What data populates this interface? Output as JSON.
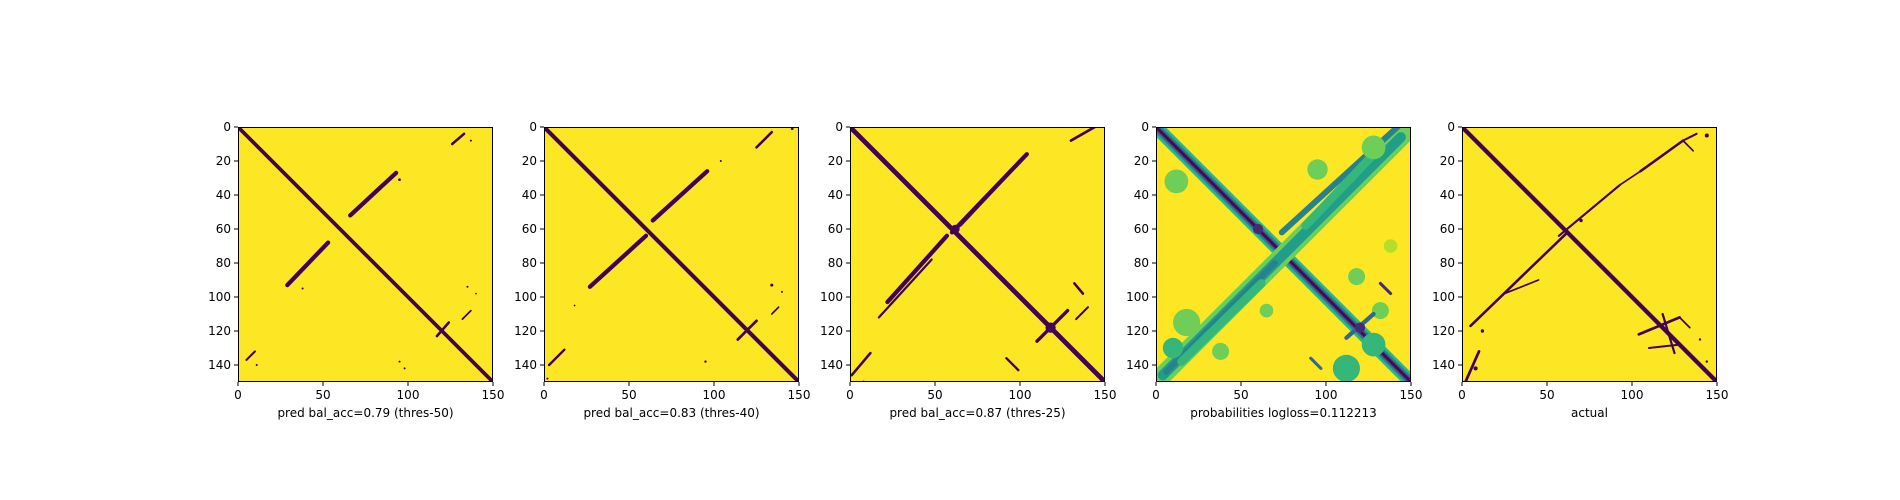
{
  "chart_data": [
    {
      "type": "heatmap",
      "xlabel": "pred bal_acc=0.79 (thres-50)",
      "x_ticks": [
        0,
        50,
        100,
        150
      ],
      "y_ticks": [
        0,
        20,
        40,
        60,
        80,
        100,
        120,
        140
      ],
      "xlim": [
        0,
        150
      ],
      "ylim": [
        150,
        0
      ],
      "colormap": "viridis",
      "colors": {
        "background": "#fde725",
        "contact": "#440154"
      },
      "features": [
        {
          "kind": "band",
          "from": [
            0,
            0
          ],
          "to": [
            150,
            150
          ],
          "width": 2.2,
          "value": 0
        },
        {
          "kind": "band",
          "from": [
            66,
            52
          ],
          "to": [
            93,
            27
          ],
          "width": 2.5,
          "value": 0
        },
        {
          "kind": "band",
          "from": [
            29,
            93
          ],
          "to": [
            53,
            68
          ],
          "width": 2.5,
          "value": 0
        },
        {
          "kind": "band",
          "from": [
            126,
            10
          ],
          "to": [
            133,
            4
          ],
          "width": 1.5,
          "value": 0
        },
        {
          "kind": "band",
          "from": [
            117,
            123
          ],
          "to": [
            124,
            115
          ],
          "width": 1.5,
          "value": 0
        },
        {
          "kind": "band",
          "from": [
            5,
            137
          ],
          "to": [
            10,
            132
          ],
          "width": 1.2,
          "value": 0
        },
        {
          "kind": "band",
          "from": [
            132,
            113
          ],
          "to": [
            137,
            108
          ],
          "width": 1.0,
          "value": 0
        },
        {
          "kind": "dot",
          "at": [
            95,
            31
          ],
          "r": 0.8,
          "value": 0
        },
        {
          "kind": "dot",
          "at": [
            137,
            8
          ],
          "r": 0.6,
          "value": 0
        },
        {
          "kind": "dot",
          "at": [
            135,
            94
          ],
          "r": 0.6,
          "value": 0
        },
        {
          "kind": "dot",
          "at": [
            140,
            98
          ],
          "r": 0.5,
          "value": 0
        },
        {
          "kind": "dot",
          "at": [
            95,
            138
          ],
          "r": 0.6,
          "value": 0
        },
        {
          "kind": "dot",
          "at": [
            98,
            142
          ],
          "r": 0.6,
          "value": 0
        },
        {
          "kind": "dot",
          "at": [
            11,
            140
          ],
          "r": 0.6,
          "value": 0
        },
        {
          "kind": "dot",
          "at": [
            38,
            95
          ],
          "r": 0.6,
          "value": 0
        }
      ]
    },
    {
      "type": "heatmap",
      "xlabel": "pred bal_acc=0.83 (thres-40)",
      "x_ticks": [
        0,
        50,
        100,
        150
      ],
      "y_ticks": [
        0,
        20,
        40,
        60,
        80,
        100,
        120,
        140
      ],
      "xlim": [
        0,
        150
      ],
      "ylim": [
        150,
        0
      ],
      "colormap": "viridis",
      "colors": {
        "background": "#fde725",
        "contact": "#440154"
      },
      "features": [
        {
          "kind": "band",
          "from": [
            0,
            0
          ],
          "to": [
            150,
            150
          ],
          "width": 2.4,
          "value": 0
        },
        {
          "kind": "band",
          "from": [
            64,
            55
          ],
          "to": [
            96,
            26
          ],
          "width": 2.5,
          "value": 0
        },
        {
          "kind": "band",
          "from": [
            27,
            94
          ],
          "to": [
            60,
            64
          ],
          "width": 2.5,
          "value": 0
        },
        {
          "kind": "band",
          "from": [
            125,
            12
          ],
          "to": [
            134,
            3
          ],
          "width": 1.5,
          "value": 0
        },
        {
          "kind": "band",
          "from": [
            114,
            125
          ],
          "to": [
            125,
            114
          ],
          "width": 1.6,
          "value": 0
        },
        {
          "kind": "band",
          "from": [
            3,
            140
          ],
          "to": [
            12,
            131
          ],
          "width": 1.4,
          "value": 0
        },
        {
          "kind": "band",
          "from": [
            134,
            110
          ],
          "to": [
            138,
            106
          ],
          "width": 1.0,
          "value": 0
        },
        {
          "kind": "dot",
          "at": [
            146,
            1
          ],
          "r": 0.8,
          "value": 0
        },
        {
          "kind": "dot",
          "at": [
            104,
            20
          ],
          "r": 0.6,
          "value": 0
        },
        {
          "kind": "dot",
          "at": [
            134,
            93
          ],
          "r": 0.9,
          "value": 0
        },
        {
          "kind": "dot",
          "at": [
            140,
            97
          ],
          "r": 0.6,
          "value": 0
        },
        {
          "kind": "dot",
          "at": [
            95,
            138
          ],
          "r": 0.7,
          "value": 0
        },
        {
          "kind": "dot",
          "at": [
            2,
            148
          ],
          "r": 0.6,
          "value": 0
        },
        {
          "kind": "dot",
          "at": [
            18,
            105
          ],
          "r": 0.5,
          "value": 0
        }
      ]
    },
    {
      "type": "heatmap",
      "xlabel": "pred bal_acc=0.87 (thres-25)",
      "x_ticks": [
        0,
        50,
        100,
        150
      ],
      "y_ticks": [
        0,
        20,
        40,
        60,
        80,
        100,
        120,
        140
      ],
      "xlim": [
        0,
        150
      ],
      "ylim": [
        150,
        0
      ],
      "colormap": "viridis",
      "colors": {
        "background": "#fde725",
        "contact": "#440154"
      },
      "features": [
        {
          "kind": "band",
          "from": [
            0,
            0
          ],
          "to": [
            150,
            150
          ],
          "width": 2.8,
          "value": 0
        },
        {
          "kind": "band",
          "from": [
            60,
            62
          ],
          "to": [
            104,
            16
          ],
          "width": 2.5,
          "value": 0
        },
        {
          "kind": "band",
          "from": [
            65,
            58
          ],
          "to": [
            95,
            26
          ],
          "width": 1.4,
          "value": 0
        },
        {
          "kind": "band",
          "from": [
            22,
            103
          ],
          "to": [
            57,
            64
          ],
          "width": 2.5,
          "value": 0
        },
        {
          "kind": "band",
          "from": [
            17,
            112
          ],
          "to": [
            48,
            78
          ],
          "width": 1.3,
          "value": 0
        },
        {
          "kind": "band",
          "from": [
            130,
            8
          ],
          "to": [
            144,
            0
          ],
          "width": 1.6,
          "value": 0
        },
        {
          "kind": "band",
          "from": [
            110,
            126
          ],
          "to": [
            128,
            108
          ],
          "width": 2.0,
          "value": 0
        },
        {
          "kind": "band",
          "from": [
            1,
            146
          ],
          "to": [
            12,
            133
          ],
          "width": 1.5,
          "value": 0
        },
        {
          "kind": "band",
          "from": [
            133,
            113
          ],
          "to": [
            140,
            106
          ],
          "width": 1.2,
          "value": 0
        },
        {
          "kind": "band",
          "from": [
            132,
            92
          ],
          "to": [
            137,
            98
          ],
          "width": 1.5,
          "value": 0
        },
        {
          "kind": "band",
          "from": [
            92,
            136
          ],
          "to": [
            99,
            143
          ],
          "width": 1.4,
          "value": 0
        },
        {
          "kind": "dot",
          "at": [
            62,
            60
          ],
          "r": 2.5,
          "value": 0
        },
        {
          "kind": "dot",
          "at": [
            118,
            118
          ],
          "r": 3.0,
          "value": 0
        },
        {
          "kind": "dot",
          "at": [
            8,
            150
          ],
          "r": 0.8,
          "value": 0
        }
      ]
    },
    {
      "type": "heatmap",
      "xlabel": "probabilities logloss=0.112213",
      "x_ticks": [
        0,
        50,
        100,
        150
      ],
      "y_ticks": [
        0,
        20,
        40,
        60,
        80,
        100,
        120,
        140
      ],
      "xlim": [
        0,
        150
      ],
      "ylim": [
        150,
        0
      ],
      "colormap": "viridis",
      "colors": {
        "background": "#fde725",
        "low": "#b5de2b",
        "mid": "#35b779",
        "high": "#21918c",
        "peak": "#31688e",
        "max": "#440154"
      },
      "features": [
        {
          "kind": "band",
          "from": [
            0,
            0
          ],
          "to": [
            150,
            150
          ],
          "width": 8,
          "value": 0.25
        },
        {
          "kind": "band",
          "from": [
            0,
            0
          ],
          "to": [
            150,
            150
          ],
          "width": 5,
          "value": 0.5
        },
        {
          "kind": "band",
          "from": [
            0,
            0
          ],
          "to": [
            150,
            150
          ],
          "width": 2.5,
          "value": 0.9
        },
        {
          "kind": "band",
          "from": [
            0,
            0
          ],
          "to": [
            150,
            150
          ],
          "width": 1.0,
          "value": 1.0
        },
        {
          "kind": "band",
          "from": [
            0,
            150
          ],
          "to": [
            148,
            2
          ],
          "width": 11,
          "value": 0.18
        },
        {
          "kind": "band",
          "from": [
            4,
            146
          ],
          "to": [
            144,
            6
          ],
          "width": 6,
          "value": 0.4
        },
        {
          "kind": "band",
          "from": [
            6,
            144
          ],
          "to": [
            70,
            80
          ],
          "width": 3.5,
          "value": 0.62
        },
        {
          "kind": "band",
          "from": [
            74,
            62
          ],
          "to": [
            142,
            0
          ],
          "width": 3.5,
          "value": 0.62
        },
        {
          "kind": "band",
          "from": [
            15,
            138
          ],
          "to": [
            62,
            92
          ],
          "width": 5,
          "value": 0.3
        },
        {
          "kind": "band",
          "from": [
            88,
            58
          ],
          "to": [
            130,
            14
          ],
          "width": 5,
          "value": 0.3
        },
        {
          "kind": "dot",
          "at": [
            12,
            32
          ],
          "r": 7,
          "value": 0.12
        },
        {
          "kind": "dot",
          "at": [
            95,
            25
          ],
          "r": 6,
          "value": 0.12
        },
        {
          "kind": "dot",
          "at": [
            128,
            12
          ],
          "r": 7,
          "value": 0.2
        },
        {
          "kind": "dot",
          "at": [
            18,
            115
          ],
          "r": 8,
          "value": 0.2
        },
        {
          "kind": "dot",
          "at": [
            10,
            130
          ],
          "r": 6,
          "value": 0.25
        },
        {
          "kind": "dot",
          "at": [
            65,
            108
          ],
          "r": 4,
          "value": 0.12
        },
        {
          "kind": "dot",
          "at": [
            38,
            132
          ],
          "r": 5,
          "value": 0.15
        },
        {
          "kind": "dot",
          "at": [
            112,
            142
          ],
          "r": 8,
          "value": 0.22
        },
        {
          "kind": "dot",
          "at": [
            128,
            128
          ],
          "r": 7,
          "value": 0.22
        },
        {
          "kind": "dot",
          "at": [
            118,
            88
          ],
          "r": 5,
          "value": 0.12
        },
        {
          "kind": "dot",
          "at": [
            132,
            108
          ],
          "r": 5,
          "value": 0.15
        },
        {
          "kind": "dot",
          "at": [
            138,
            70
          ],
          "r": 4,
          "value": 0.1
        },
        {
          "kind": "band",
          "from": [
            132,
            92
          ],
          "to": [
            138,
            98
          ],
          "width": 1.8,
          "value": 0.8
        },
        {
          "kind": "band",
          "from": [
            91,
            136
          ],
          "to": [
            97,
            142
          ],
          "width": 1.8,
          "value": 0.75
        },
        {
          "kind": "band",
          "from": [
            112,
            124
          ],
          "to": [
            128,
            110
          ],
          "width": 2.5,
          "value": 0.7
        },
        {
          "kind": "dot",
          "at": [
            60,
            60
          ],
          "r": 3,
          "value": 0.9
        },
        {
          "kind": "dot",
          "at": [
            120,
            118
          ],
          "r": 3,
          "value": 0.8
        }
      ]
    },
    {
      "type": "heatmap",
      "xlabel": "actual",
      "x_ticks": [
        0,
        50,
        100,
        150
      ],
      "y_ticks": [
        0,
        20,
        40,
        60,
        80,
        100,
        120,
        140
      ],
      "xlim": [
        0,
        150
      ],
      "ylim": [
        150,
        0
      ],
      "colormap": "viridis",
      "colors": {
        "background": "#fde725",
        "contact": "#440154"
      },
      "features": [
        {
          "kind": "band",
          "from": [
            0,
            0
          ],
          "to": [
            150,
            150
          ],
          "width": 2.5,
          "value": 0
        },
        {
          "kind": "band",
          "from": [
            57,
            64
          ],
          "to": [
            93,
            34
          ],
          "width": 1.3,
          "value": 0
        },
        {
          "kind": "band",
          "from": [
            93,
            34
          ],
          "to": [
            105,
            26
          ],
          "width": 1.0,
          "value": 0
        },
        {
          "kind": "band",
          "from": [
            105,
            26
          ],
          "to": [
            130,
            8
          ],
          "width": 1.5,
          "value": 0
        },
        {
          "kind": "band",
          "from": [
            130,
            8
          ],
          "to": [
            138,
            4
          ],
          "width": 1.2,
          "value": 0
        },
        {
          "kind": "band",
          "from": [
            5,
            117
          ],
          "to": [
            62,
            62
          ],
          "width": 1.5,
          "value": 0
        },
        {
          "kind": "band",
          "from": [
            2,
            150
          ],
          "to": [
            10,
            132
          ],
          "width": 1.6,
          "value": 0
        },
        {
          "kind": "band",
          "from": [
            104,
            122
          ],
          "to": [
            128,
            112
          ],
          "width": 1.6,
          "value": 0
        },
        {
          "kind": "band",
          "from": [
            118,
            110
          ],
          "to": [
            125,
            133
          ],
          "width": 1.3,
          "value": 0
        },
        {
          "kind": "band",
          "from": [
            110,
            130
          ],
          "to": [
            128,
            128
          ],
          "width": 1.2,
          "value": 0
        },
        {
          "kind": "band",
          "from": [
            128,
            112
          ],
          "to": [
            134,
            118
          ],
          "width": 1.0,
          "value": 0
        },
        {
          "kind": "band",
          "from": [
            130,
            8
          ],
          "to": [
            136,
            14
          ],
          "width": 1.0,
          "value": 0
        },
        {
          "kind": "band",
          "from": [
            25,
            98
          ],
          "to": [
            45,
            90
          ],
          "width": 1.0,
          "value": 0
        },
        {
          "kind": "dot",
          "at": [
            144,
            5
          ],
          "r": 1.2,
          "value": 0
        },
        {
          "kind": "dot",
          "at": [
            8,
            142
          ],
          "r": 1.2,
          "value": 0
        },
        {
          "kind": "dot",
          "at": [
            12,
            120
          ],
          "r": 1.0,
          "value": 0
        },
        {
          "kind": "dot",
          "at": [
            140,
            125
          ],
          "r": 0.7,
          "value": 0
        },
        {
          "kind": "dot",
          "at": [
            144,
            138
          ],
          "r": 0.7,
          "value": 0
        },
        {
          "kind": "dot",
          "at": [
            70,
            55
          ],
          "r": 1.0,
          "value": 0
        }
      ]
    }
  ]
}
